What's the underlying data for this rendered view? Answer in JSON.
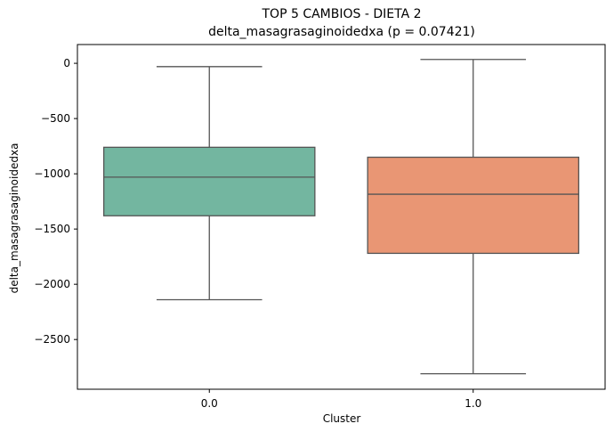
{
  "chart_data": {
    "type": "box",
    "title": "TOP 5 CAMBIOS - DIETA 2",
    "subtitle": "delta_masagrasaginoidedxa (p = 0.07421)",
    "xlabel": "Cluster",
    "ylabel": "delta_masagrasaginoidedxa",
    "categories": [
      "0.0",
      "1.0"
    ],
    "ylim": [
      -2950,
      170
    ],
    "yticks": [
      0,
      -500,
      -1000,
      -1500,
      -2000,
      -2500
    ],
    "ytick_labels": [
      "0",
      "−500",
      "−1000",
      "−1500",
      "−2000",
      "−2500"
    ],
    "grid": false,
    "boxes": [
      {
        "category": "0.0",
        "whisker_low": -2140,
        "q1": -1380,
        "median": -1030,
        "q3": -760,
        "whisker_high": -30,
        "color": "#73b6a0"
      },
      {
        "category": "1.0",
        "whisker_low": -2810,
        "q1": -1720,
        "median": -1185,
        "q3": -850,
        "whisker_high": 35,
        "color": "#e99674"
      }
    ]
  }
}
